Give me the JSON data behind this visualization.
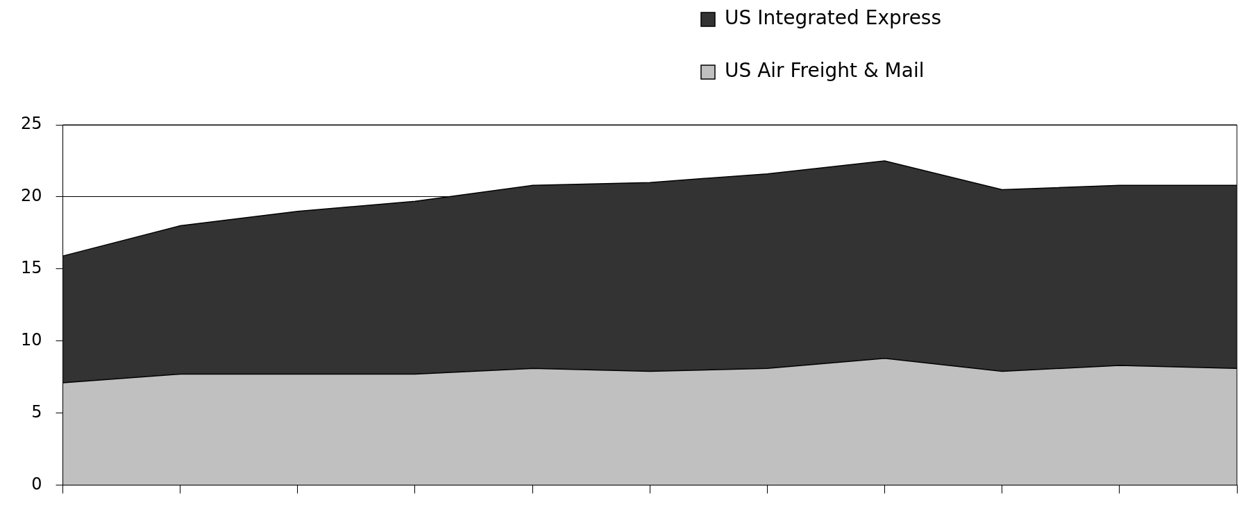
{
  "chart_data": {
    "type": "area",
    "stacked": true,
    "categories": [
      null,
      null,
      null,
      null,
      null,
      null,
      null,
      null,
      null,
      null,
      null
    ],
    "series": [
      {
        "name": "US Air Freight & Mail",
        "color": "#c0c0c0",
        "values": [
          7.1,
          7.7,
          7.7,
          7.7,
          8.1,
          7.9,
          8.1,
          8.8,
          7.9,
          8.3,
          8.1
        ]
      },
      {
        "name": "US Integrated Express",
        "color": "#333333",
        "values": [
          8.8,
          10.3,
          11.3,
          12.0,
          12.7,
          13.1,
          13.5,
          13.7,
          12.6,
          12.5,
          12.7
        ]
      }
    ],
    "ylim": [
      0,
      25
    ],
    "yticks": [
      0,
      5,
      10,
      15,
      20,
      25
    ],
    "grid": "y",
    "legend": "top right",
    "tick_labels": "y"
  }
}
